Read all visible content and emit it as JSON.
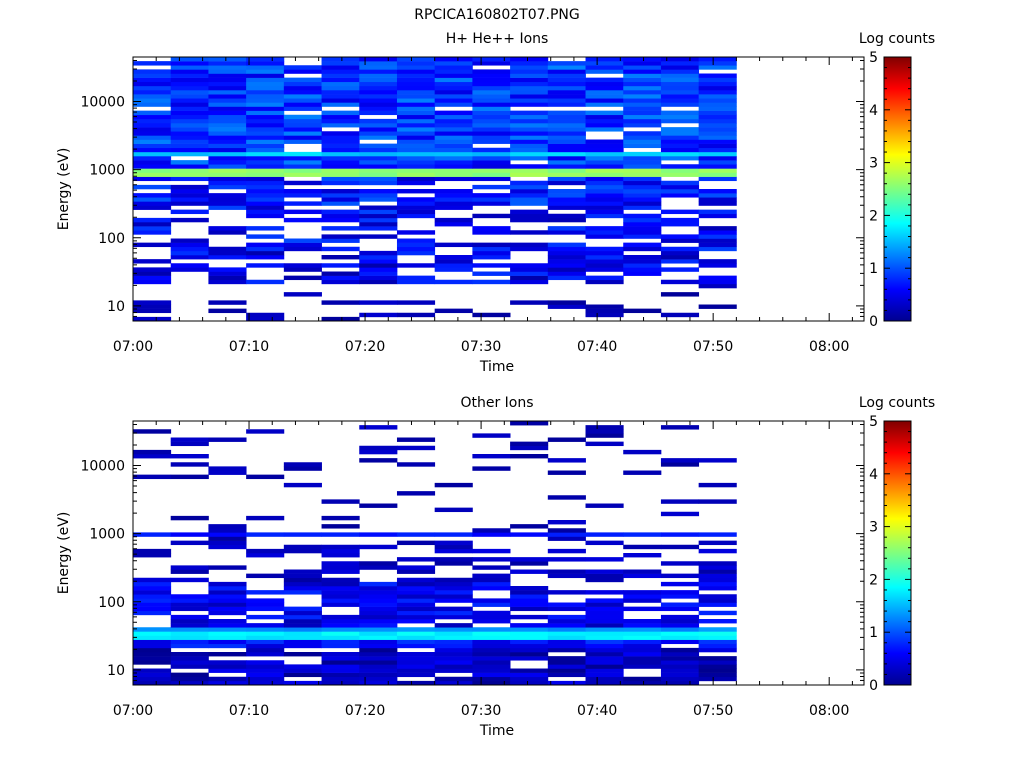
{
  "page": {
    "title": "RPCICA160802T07.PNG"
  },
  "chart_data": [
    {
      "type": "heatmap",
      "title": "H+ He++ Ions",
      "xlabel": "Time",
      "ylabel": "Energy (eV)",
      "colorbar_label": "Log counts",
      "x_ticks": [
        "07:00",
        "07:10",
        "07:20",
        "07:30",
        "07:40",
        "07:50",
        "08:00"
      ],
      "x_range_minutes": [
        0,
        63
      ],
      "data_end_minutes": 52,
      "time_bins": 16,
      "y_scale": "log",
      "y_range": [
        6,
        45000
      ],
      "y_ticks": [
        {
          "v": 10,
          "label": "10"
        },
        {
          "v": 100,
          "label": "100"
        },
        {
          "v": 1000,
          "label": "1000"
        },
        {
          "v": 10000,
          "label": "10000"
        }
      ],
      "energy_bins": 64,
      "colorbar": {
        "min": 0,
        "max": 5,
        "ticks": [
          "0",
          "1",
          "2",
          "3",
          "4",
          "5"
        ]
      },
      "bands": [
        {
          "e_lo": 830,
          "e_hi": 1000,
          "value": 2.6
        },
        {
          "e_lo": 1000,
          "e_hi": 1100,
          "value": 1.9
        },
        {
          "e_lo": 1650,
          "e_hi": 1900,
          "value": 1.6
        }
      ],
      "profile": [
        {
          "e_lo": 6,
          "e_hi": 12,
          "density": 0.35,
          "min": 0.05,
          "max": 0.35
        },
        {
          "e_lo": 12,
          "e_hi": 20,
          "density": 0.05,
          "min": 0.05,
          "max": 0.3
        },
        {
          "e_lo": 20,
          "e_hi": 60,
          "density": 0.6,
          "min": 0.15,
          "max": 0.85
        },
        {
          "e_lo": 60,
          "e_hi": 300,
          "density": 0.55,
          "min": 0.2,
          "max": 0.95
        },
        {
          "e_lo": 300,
          "e_hi": 830,
          "density": 0.78,
          "min": 0.3,
          "max": 1.05
        },
        {
          "e_lo": 1100,
          "e_hi": 45000,
          "density": 0.9,
          "min": 0.45,
          "max": 1.25
        }
      ],
      "seed": 7
    },
    {
      "type": "heatmap",
      "title": "Other Ions",
      "xlabel": "Time",
      "ylabel": "Energy (eV)",
      "colorbar_label": "Log counts",
      "x_ticks": [
        "07:00",
        "07:10",
        "07:20",
        "07:30",
        "07:40",
        "07:50",
        "08:00"
      ],
      "x_range_minutes": [
        0,
        63
      ],
      "data_end_minutes": 52,
      "time_bins": 16,
      "y_scale": "log",
      "y_range": [
        6,
        45000
      ],
      "y_ticks": [
        {
          "v": 10,
          "label": "10"
        },
        {
          "v": 100,
          "label": "100"
        },
        {
          "v": 1000,
          "label": "1000"
        },
        {
          "v": 10000,
          "label": "10000"
        }
      ],
      "energy_bins": 64,
      "colorbar": {
        "min": 0,
        "max": 5,
        "ticks": [
          "0",
          "1",
          "2",
          "3",
          "4",
          "5"
        ]
      },
      "bands": [
        {
          "e_lo": 28,
          "e_hi": 36,
          "value": 1.8
        },
        {
          "e_lo": 36,
          "e_hi": 42,
          "value": 1.3
        },
        {
          "e_lo": 900,
          "e_hi": 1000,
          "value": 0.7
        }
      ],
      "profile": [
        {
          "e_lo": 6,
          "e_hi": 20,
          "density": 0.85,
          "min": 0.0,
          "max": 0.55
        },
        {
          "e_lo": 20,
          "e_hi": 28,
          "density": 0.95,
          "min": 0.4,
          "max": 0.9
        },
        {
          "e_lo": 42,
          "e_hi": 200,
          "density": 0.75,
          "min": 0.2,
          "max": 0.8
        },
        {
          "e_lo": 200,
          "e_hi": 900,
          "density": 0.4,
          "min": 0.1,
          "max": 0.45
        },
        {
          "e_lo": 1000,
          "e_hi": 45000,
          "density": 0.14,
          "min": 0.05,
          "max": 0.35
        }
      ],
      "seed": 23
    }
  ]
}
